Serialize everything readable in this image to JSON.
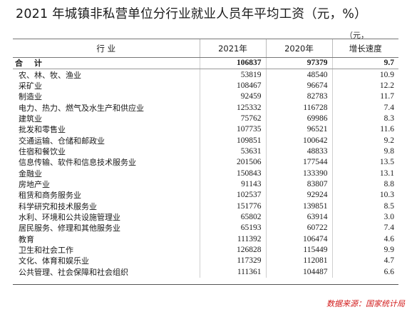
{
  "title": "2021 年城镇非私营单位分行业就业人员年平均工资（元，%）",
  "unit_note": "（元，",
  "headers": {
    "industry": "行  业",
    "y2021": "2021年",
    "y2020": "2020年",
    "growth": "增长速度"
  },
  "rows": [
    {
      "name": "合  计",
      "y2021": "106837",
      "y2020": "97379",
      "growth": "9.7",
      "total": true
    },
    {
      "name": "农、林、牧、渔业",
      "y2021": "53819",
      "y2020": "48540",
      "growth": "10.9"
    },
    {
      "name": "采矿业",
      "y2021": "108467",
      "y2020": "96674",
      "growth": "12.2"
    },
    {
      "name": "制造业",
      "y2021": "92459",
      "y2020": "82783",
      "growth": "11.7"
    },
    {
      "name": "电力、热力、燃气及水生产和供应业",
      "y2021": "125332",
      "y2020": "116728",
      "growth": "7.4"
    },
    {
      "name": "建筑业",
      "y2021": "75762",
      "y2020": "69986",
      "growth": "8.3"
    },
    {
      "name": "批发和零售业",
      "y2021": "107735",
      "y2020": "96521",
      "growth": "11.6"
    },
    {
      "name": "交通运输、仓储和邮政业",
      "y2021": "109851",
      "y2020": "100642",
      "growth": "9.2"
    },
    {
      "name": "住宿和餐饮业",
      "y2021": "53631",
      "y2020": "48833",
      "growth": "9.8"
    },
    {
      "name": "信息传输、软件和信息技术服务业",
      "y2021": "201506",
      "y2020": "177544",
      "growth": "13.5"
    },
    {
      "name": "金融业",
      "y2021": "150843",
      "y2020": "133390",
      "growth": "13.1"
    },
    {
      "name": "房地产业",
      "y2021": "91143",
      "y2020": "83807",
      "growth": "8.8"
    },
    {
      "name": "租赁和商务服务业",
      "y2021": "102537",
      "y2020": "92924",
      "growth": "10.3"
    },
    {
      "name": "科学研究和技术服务业",
      "y2021": "151776",
      "y2020": "139851",
      "growth": "8.5"
    },
    {
      "name": "水利、环境和公共设施管理业",
      "y2021": "65802",
      "y2020": "63914",
      "growth": "3.0"
    },
    {
      "name": "居民服务、修理和其他服务业",
      "y2021": "65193",
      "y2020": "60722",
      "growth": "7.4"
    },
    {
      "name": "教育",
      "y2021": "111392",
      "y2020": "106474",
      "growth": "4.6"
    },
    {
      "name": "卫生和社会工作",
      "y2021": "126828",
      "y2020": "115449",
      "growth": "9.9"
    },
    {
      "name": "文化、体育和娱乐业",
      "y2021": "117329",
      "y2020": "112081",
      "growth": "4.7"
    },
    {
      "name": "公共管理、社会保障和社会组织",
      "y2021": "111361",
      "y2020": "104487",
      "growth": "6.6"
    }
  ],
  "source": "数据来源：国家统计局",
  "colors": {
    "source_text": "#d21a1a",
    "rule": "#777777"
  }
}
